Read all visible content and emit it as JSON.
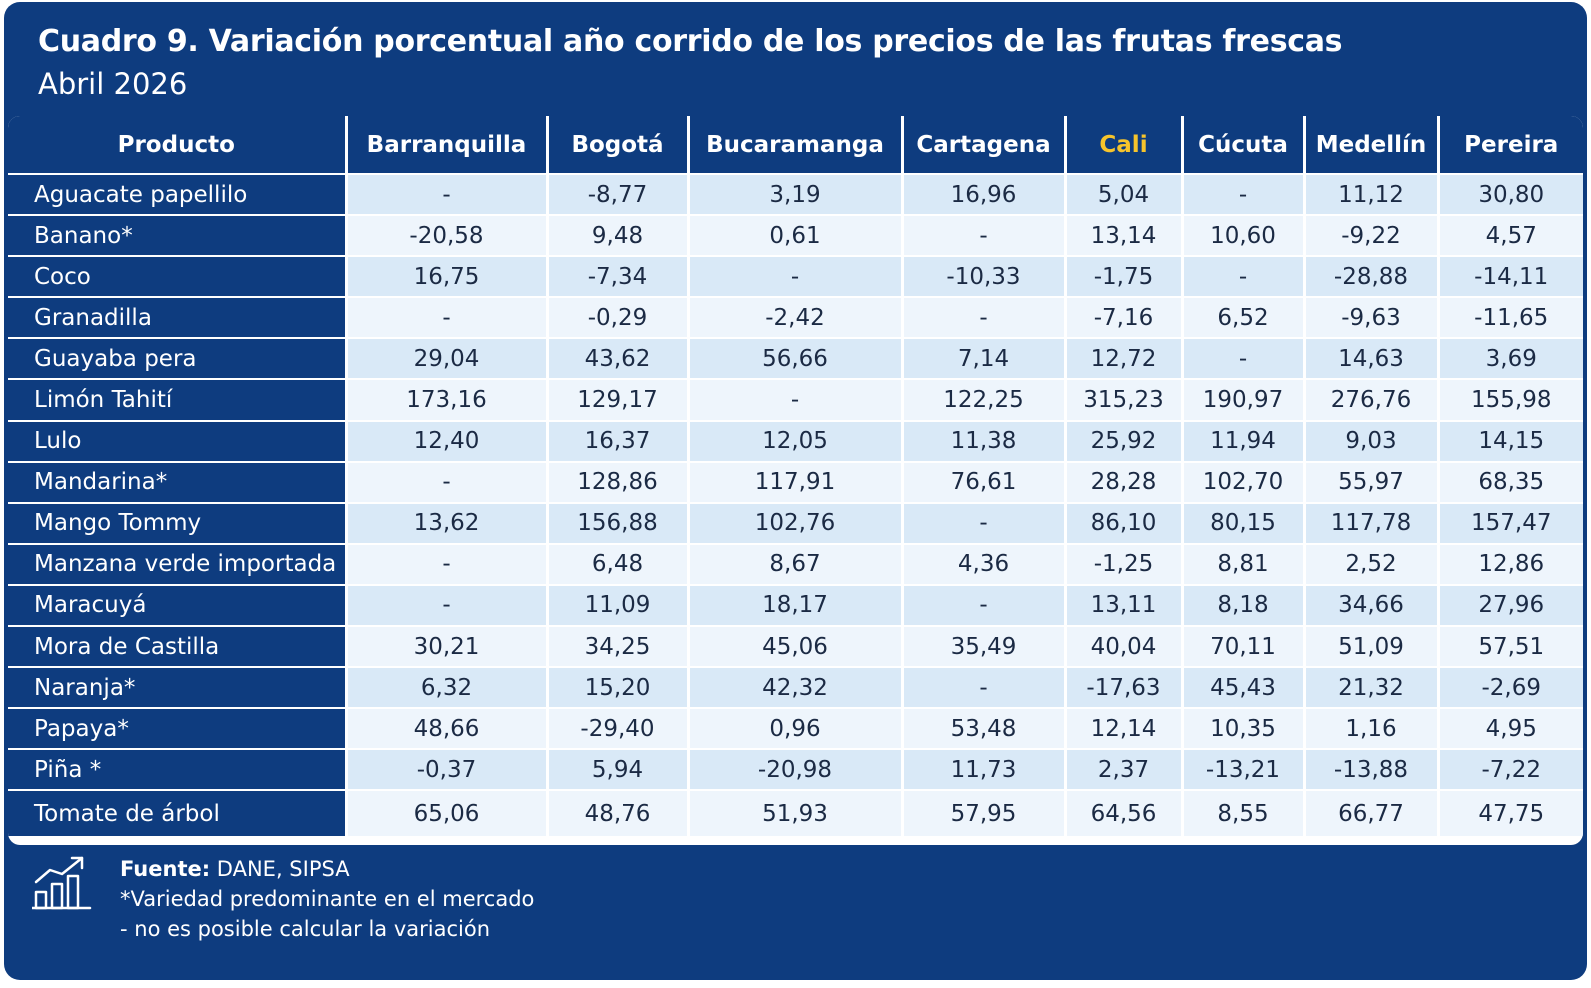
{
  "header": {
    "title": "Cuadro 9. Variación porcentual año corrido de los precios de las frutas frescas",
    "subtitle": "Abril 2026"
  },
  "table": {
    "columns": [
      "Producto",
      "Barranquilla",
      "Bogotá",
      "Bucaramanga",
      "Cartagena",
      "Cali",
      "Cúcuta",
      "Medellín",
      "Pereira"
    ],
    "highlight_color": "#f6c42c",
    "rows": [
      {
        "product": "Aguacate papellilo",
        "values": [
          "-",
          "-8,77",
          "3,19",
          "16,96",
          "5,04",
          "-",
          "11,12",
          "30,80"
        ]
      },
      {
        "product": "Banano*",
        "values": [
          "-20,58",
          "9,48",
          "0,61",
          "-",
          "13,14",
          "10,60",
          "-9,22",
          "4,57"
        ]
      },
      {
        "product": "Coco",
        "values": [
          "16,75",
          "-7,34",
          "-",
          "-10,33",
          "-1,75",
          "-",
          "-28,88",
          "-14,11"
        ]
      },
      {
        "product": "Granadilla",
        "values": [
          "-",
          "-0,29",
          "-2,42",
          "-",
          "-7,16",
          "6,52",
          "-9,63",
          "-11,65"
        ]
      },
      {
        "product": "Guayaba pera",
        "values": [
          "29,04",
          "43,62",
          "56,66",
          "7,14",
          "12,72",
          "-",
          "14,63",
          "3,69"
        ]
      },
      {
        "product": "Limón Tahití",
        "values": [
          "173,16",
          "129,17",
          "-",
          "122,25",
          "315,23",
          "190,97",
          "276,76",
          "155,98"
        ]
      },
      {
        "product": "Lulo",
        "values": [
          "12,40",
          "16,37",
          "12,05",
          "11,38",
          "25,92",
          "11,94",
          "9,03",
          "14,15"
        ]
      },
      {
        "product": "Mandarina*",
        "values": [
          "-",
          "128,86",
          "117,91",
          "76,61",
          "28,28",
          "102,70",
          "55,97",
          "68,35"
        ]
      },
      {
        "product": "Mango Tommy",
        "values": [
          "13,62",
          "156,88",
          "102,76",
          "-",
          "86,10",
          "80,15",
          "117,78",
          "157,47"
        ]
      },
      {
        "product": "Manzana verde importada",
        "values": [
          "-",
          "6,48",
          "8,67",
          "4,36",
          "-1,25",
          "8,81",
          "2,52",
          "12,86"
        ]
      },
      {
        "product": "Maracuyá",
        "values": [
          "-",
          "11,09",
          "18,17",
          "-",
          "13,11",
          "8,18",
          "34,66",
          "27,96"
        ]
      },
      {
        "product": "Mora de Castilla",
        "values": [
          "30,21",
          "34,25",
          "45,06",
          "35,49",
          "40,04",
          "70,11",
          "51,09",
          "57,51"
        ]
      },
      {
        "product": "Naranja*",
        "values": [
          "6,32",
          "15,20",
          "42,32",
          "-",
          "-17,63",
          "45,43",
          "21,32",
          "-2,69"
        ]
      },
      {
        "product": "Papaya*",
        "values": [
          "48,66",
          "-29,40",
          "0,96",
          "53,48",
          "12,14",
          "10,35",
          "1,16",
          "4,95"
        ]
      },
      {
        "product": "Piña *",
        "values": [
          "-0,37",
          "5,94",
          "-20,98",
          "11,73",
          "2,37",
          "-13,21",
          "-13,88",
          "-7,22"
        ]
      },
      {
        "product": "Tomate de árbol",
        "values": [
          "65,06",
          "48,76",
          "51,93",
          "57,95",
          "64,56",
          "8,55",
          "66,77",
          "47,75"
        ]
      }
    ]
  },
  "footer": {
    "icon": "chart-growth-icon",
    "source_label": "Fuente:",
    "source_value": " DANE, SIPSA",
    "note1": "*Variedad predominante en el mercado",
    "note2": "- no es posible calcular la variación"
  }
}
